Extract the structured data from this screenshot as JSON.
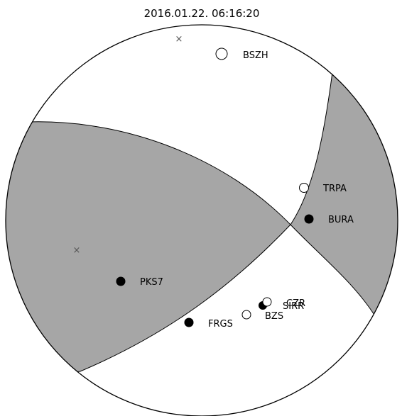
{
  "title": "2016.01.22. 06:16:20",
  "colors": {
    "compressional": "#a6a6a6",
    "dilatational": "#ffffff",
    "outline": "#000000"
  },
  "axes": [
    {
      "name": "P-axis",
      "symbol": "×"
    },
    {
      "name": "T-axis",
      "symbol": "×"
    }
  ],
  "stations": [
    {
      "code": "BSZH",
      "polarity": "dilatation"
    },
    {
      "code": "TRPA",
      "polarity": "dilatation"
    },
    {
      "code": "BURA",
      "polarity": "compression"
    },
    {
      "code": "PKS7",
      "polarity": "compression"
    },
    {
      "code": "FRGS",
      "polarity": "compression"
    },
    {
      "code": "BZS",
      "polarity": "dilatation"
    },
    {
      "code": "SIRR",
      "polarity": "compression"
    },
    {
      "code": "CZR",
      "polarity": "dilatation"
    }
  ]
}
